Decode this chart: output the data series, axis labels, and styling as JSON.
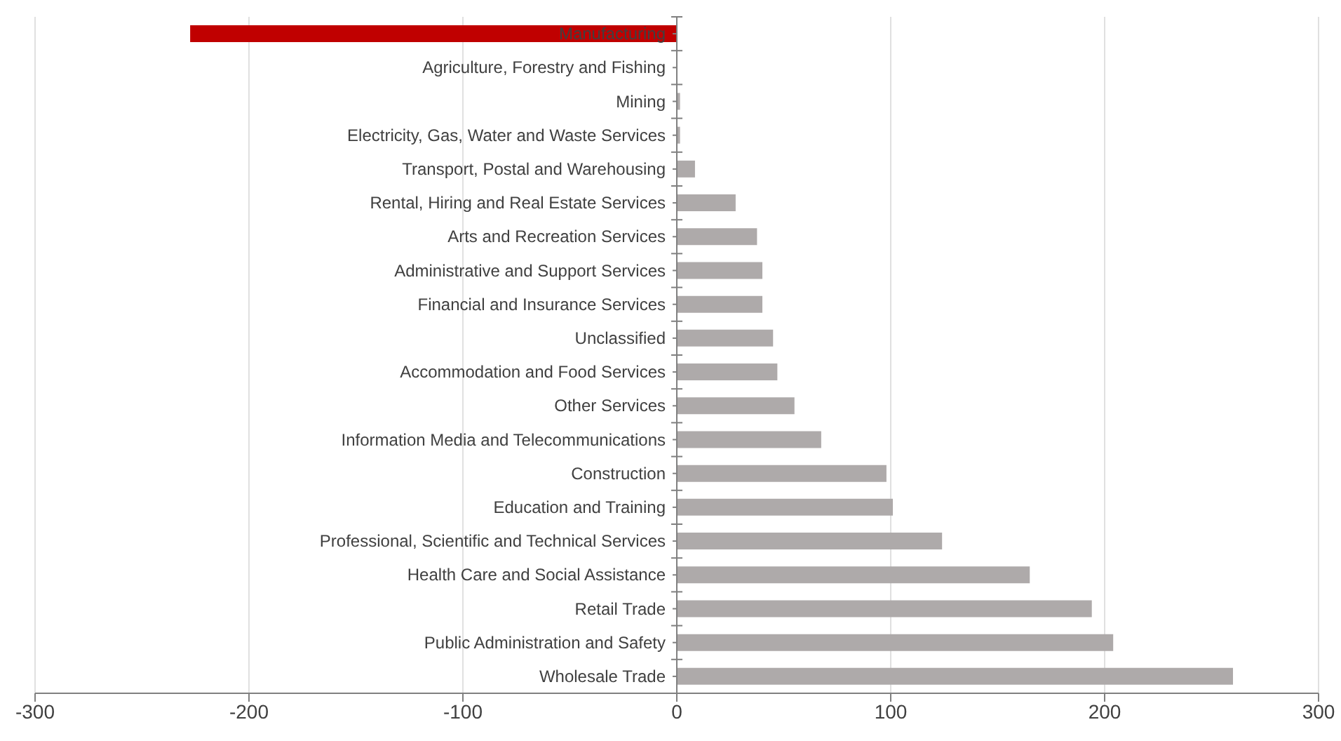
{
  "chart_data": {
    "type": "bar",
    "orientation": "horizontal",
    "categories": [
      "Manufacturing",
      "Agriculture, Forestry and Fishing",
      "Mining",
      "Electricity, Gas, Water and Waste Services",
      "Transport, Postal and Warehousing",
      "Rental, Hiring and Real Estate Services",
      "Arts and Recreation Services",
      "Administrative and Support Services",
      "Financial and Insurance Services",
      "Unclassified",
      "Accommodation and Food Services",
      "Other Services",
      "Information Media and Telecommunications",
      "Construction",
      "Education and Training",
      "Professional, Scientific and Technical Services",
      "Health Care and Social Assistance",
      "Retail Trade",
      "Public Administration and Safety",
      "Wholesale Trade"
    ],
    "values": [
      -227.5,
      0,
      1.5,
      1.5,
      8.5,
      27.5,
      37.5,
      40,
      40,
      45,
      47,
      55,
      67.5,
      98,
      101,
      124,
      165,
      194,
      204,
      260
    ],
    "colors": [
      "#c00000",
      "#aeaaaa",
      "#aeaaaa",
      "#aeaaaa",
      "#aeaaaa",
      "#aeaaaa",
      "#aeaaaa",
      "#aeaaaa",
      "#aeaaaa",
      "#aeaaaa",
      "#aeaaaa",
      "#aeaaaa",
      "#aeaaaa",
      "#aeaaaa",
      "#aeaaaa",
      "#aeaaaa",
      "#aeaaaa",
      "#aeaaaa",
      "#aeaaaa",
      "#aeaaaa"
    ],
    "xlim": [
      -300,
      300
    ],
    "xticks": [
      -300,
      -200,
      -100,
      0,
      100,
      200,
      300
    ],
    "grid": "x"
  }
}
